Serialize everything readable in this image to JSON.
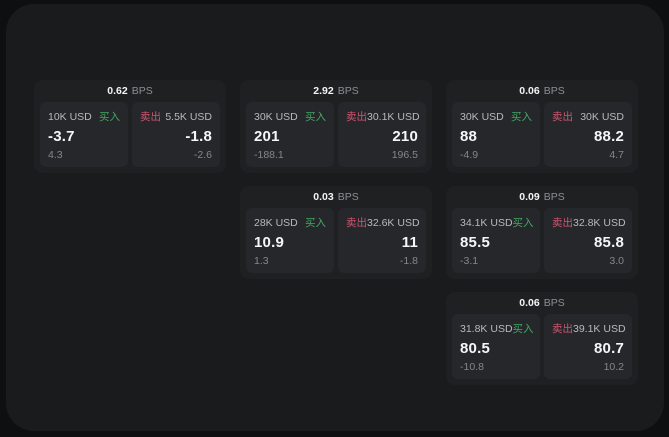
{
  "labels": {
    "bps_unit": "BPS",
    "buy": "买入",
    "sell": "卖出"
  },
  "colors": {
    "background": "#0e0f10",
    "surface": "#1a1b1c",
    "card": "#1f2022",
    "panel": "#26272a",
    "buy": "#43a866",
    "sell": "#cd5672"
  },
  "cards": [
    {
      "spread_bps": "0.62",
      "buy": {
        "amount": "10K USD",
        "price": "-3.7",
        "change": "4.3"
      },
      "sell": {
        "amount": "5.5K USD",
        "price": "-1.8",
        "change": "-2.6"
      }
    },
    {
      "spread_bps": "2.92",
      "buy": {
        "amount": "30K USD",
        "price": "201",
        "change": "-188.1"
      },
      "sell": {
        "amount": "30.1K USD",
        "price": "210",
        "change": "196.5"
      }
    },
    {
      "spread_bps": "0.06",
      "buy": {
        "amount": "30K USD",
        "price": "88",
        "change": "-4.9"
      },
      "sell": {
        "amount": "30K USD",
        "price": "88.2",
        "change": "4.7"
      }
    },
    {
      "spread_bps": "0.03",
      "buy": {
        "amount": "28K USD",
        "price": "10.9",
        "change": "1.3"
      },
      "sell": {
        "amount": "32.6K USD",
        "price": "11",
        "change": "-1.8"
      }
    },
    {
      "spread_bps": "0.09",
      "buy": {
        "amount": "34.1K USD",
        "price": "85.5",
        "change": "-3.1"
      },
      "sell": {
        "amount": "32.8K USD",
        "price": "85.8",
        "change": "3.0"
      }
    },
    {
      "spread_bps": "0.06",
      "buy": {
        "amount": "31.8K USD",
        "price": "80.5",
        "change": "-10.8"
      },
      "sell": {
        "amount": "39.1K USD",
        "price": "80.7",
        "change": "10.2"
      }
    }
  ]
}
